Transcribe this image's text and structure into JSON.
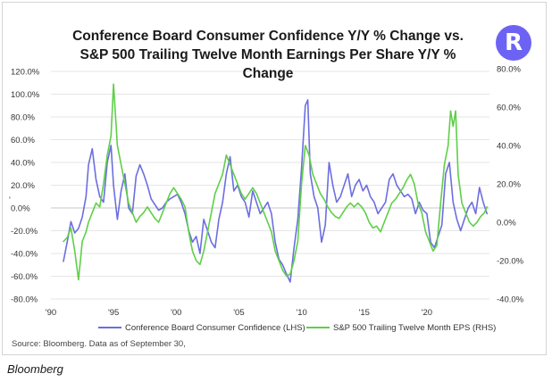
{
  "chart_data": {
    "type": "line",
    "title_line1": "Conference Board Consumer Confidence Y/Y % Change vs.",
    "title_line2": "S&P 500 Trailing Twelve Month Earnings Per Share Y/Y %",
    "title_line3": "Change",
    "source": "Source: Bloomberg. Data as of September 30,",
    "caption": "Bloomberg",
    "logo_letter": "R",
    "x_ticks": [
      "'90",
      "'95",
      "'00",
      "'05",
      "'10",
      "'15",
      "'20"
    ],
    "x_tick_years": [
      1990,
      1995,
      2000,
      2005,
      2010,
      2015,
      2020
    ],
    "xlim": [
      1990,
      2025
    ],
    "left_axis": {
      "ylim": [
        -80,
        120
      ],
      "ticks": [
        120,
        100,
        80,
        60,
        40,
        20,
        0,
        -20,
        -40,
        -60,
        -80
      ],
      "tick_labels": [
        "120.0%",
        "100.0%",
        "80.0%",
        "60.0%",
        "40.0%",
        "20.0%",
        "0.0%",
        "-20.0%",
        "-40.0%",
        "-60.0%",
        "-80.0%"
      ],
      "marker": "'"
    },
    "right_axis": {
      "ylim": [
        -40,
        80
      ],
      "ticks": [
        80,
        60,
        40,
        20,
        0,
        -20,
        -40
      ],
      "tick_labels": [
        "80.0%",
        "60.0%",
        "40.0%",
        "20.0%",
        "0.0%",
        "-20.0%",
        "-40.0%"
      ]
    },
    "series": [
      {
        "name": "Conference Board Consumer Confidence (LHS)",
        "axis": "left",
        "color": "#6c6ee0",
        "points": [
          [
            1991.0,
            -47
          ],
          [
            1991.3,
            -30
          ],
          [
            1991.6,
            -12
          ],
          [
            1991.9,
            -22
          ],
          [
            1992.2,
            -18
          ],
          [
            1992.5,
            -8
          ],
          [
            1992.8,
            10
          ],
          [
            1993.0,
            38
          ],
          [
            1993.3,
            52
          ],
          [
            1993.6,
            25
          ],
          [
            1993.9,
            10
          ],
          [
            1994.2,
            5
          ],
          [
            1994.5,
            40
          ],
          [
            1994.8,
            55
          ],
          [
            1995.0,
            20
          ],
          [
            1995.3,
            -10
          ],
          [
            1995.6,
            15
          ],
          [
            1995.9,
            30
          ],
          [
            1996.2,
            0
          ],
          [
            1996.5,
            -5
          ],
          [
            1996.8,
            28
          ],
          [
            1997.1,
            38
          ],
          [
            1997.4,
            30
          ],
          [
            1997.7,
            20
          ],
          [
            1998.0,
            8
          ],
          [
            1998.3,
            3
          ],
          [
            1998.6,
            -2
          ],
          [
            1998.9,
            0
          ],
          [
            1999.2,
            5
          ],
          [
            1999.5,
            8
          ],
          [
            1999.8,
            10
          ],
          [
            2000.1,
            12
          ],
          [
            2000.4,
            5
          ],
          [
            2000.7,
            -5
          ],
          [
            2001.0,
            -20
          ],
          [
            2001.3,
            -30
          ],
          [
            2001.6,
            -25
          ],
          [
            2001.9,
            -40
          ],
          [
            2002.2,
            -10
          ],
          [
            2002.5,
            -20
          ],
          [
            2002.8,
            -30
          ],
          [
            2003.1,
            -35
          ],
          [
            2003.4,
            -10
          ],
          [
            2003.7,
            5
          ],
          [
            2004.0,
            30
          ],
          [
            2004.3,
            45
          ],
          [
            2004.6,
            15
          ],
          [
            2004.9,
            20
          ],
          [
            2005.2,
            10
          ],
          [
            2005.5,
            5
          ],
          [
            2005.8,
            -8
          ],
          [
            2006.1,
            15
          ],
          [
            2006.4,
            5
          ],
          [
            2006.7,
            -5
          ],
          [
            2007.0,
            0
          ],
          [
            2007.3,
            5
          ],
          [
            2007.6,
            -5
          ],
          [
            2007.9,
            -30
          ],
          [
            2008.2,
            -45
          ],
          [
            2008.5,
            -50
          ],
          [
            2008.8,
            -58
          ],
          [
            2009.1,
            -65
          ],
          [
            2009.4,
            -35
          ],
          [
            2009.7,
            -10
          ],
          [
            2010.0,
            35
          ],
          [
            2010.3,
            90
          ],
          [
            2010.5,
            95
          ],
          [
            2010.7,
            30
          ],
          [
            2011.0,
            10
          ],
          [
            2011.3,
            0
          ],
          [
            2011.6,
            -30
          ],
          [
            2011.9,
            -15
          ],
          [
            2012.2,
            40
          ],
          [
            2012.5,
            20
          ],
          [
            2012.8,
            5
          ],
          [
            2013.1,
            10
          ],
          [
            2013.4,
            20
          ],
          [
            2013.7,
            30
          ],
          [
            2014.0,
            10
          ],
          [
            2014.3,
            20
          ],
          [
            2014.6,
            25
          ],
          [
            2014.9,
            15
          ],
          [
            2015.2,
            20
          ],
          [
            2015.5,
            10
          ],
          [
            2015.8,
            5
          ],
          [
            2016.1,
            -5
          ],
          [
            2016.4,
            0
          ],
          [
            2016.7,
            5
          ],
          [
            2017.0,
            25
          ],
          [
            2017.3,
            30
          ],
          [
            2017.6,
            20
          ],
          [
            2017.9,
            15
          ],
          [
            2018.2,
            10
          ],
          [
            2018.5,
            12
          ],
          [
            2018.8,
            8
          ],
          [
            2019.1,
            -5
          ],
          [
            2019.4,
            5
          ],
          [
            2019.7,
            -2
          ],
          [
            2020.0,
            -5
          ],
          [
            2020.3,
            -30
          ],
          [
            2020.6,
            -35
          ],
          [
            2020.9,
            -25
          ],
          [
            2021.2,
            -15
          ],
          [
            2021.5,
            30
          ],
          [
            2021.8,
            40
          ],
          [
            2022.1,
            5
          ],
          [
            2022.4,
            -10
          ],
          [
            2022.7,
            -20
          ],
          [
            2023.0,
            -10
          ],
          [
            2023.3,
            0
          ],
          [
            2023.6,
            5
          ],
          [
            2023.9,
            -5
          ],
          [
            2024.2,
            18
          ],
          [
            2024.5,
            5
          ],
          [
            2024.8,
            -5
          ]
        ]
      },
      {
        "name": "S&P 500 Trailing Twelve Month EPS (RHS)",
        "axis": "right",
        "color": "#5fcf48",
        "points": [
          [
            1991.0,
            -10
          ],
          [
            1991.3,
            -8
          ],
          [
            1991.6,
            -3
          ],
          [
            1991.9,
            -15
          ],
          [
            1992.2,
            -30
          ],
          [
            1992.5,
            -10
          ],
          [
            1992.8,
            -5
          ],
          [
            1993.0,
            0
          ],
          [
            1993.3,
            5
          ],
          [
            1993.6,
            10
          ],
          [
            1993.9,
            8
          ],
          [
            1994.2,
            20
          ],
          [
            1994.5,
            35
          ],
          [
            1994.8,
            45
          ],
          [
            1995.0,
            72
          ],
          [
            1995.3,
            40
          ],
          [
            1995.6,
            30
          ],
          [
            1995.9,
            20
          ],
          [
            1996.2,
            10
          ],
          [
            1996.5,
            5
          ],
          [
            1996.8,
            0
          ],
          [
            1997.1,
            3
          ],
          [
            1997.4,
            5
          ],
          [
            1997.7,
            8
          ],
          [
            1998.0,
            5
          ],
          [
            1998.3,
            2
          ],
          [
            1998.6,
            0
          ],
          [
            1998.9,
            5
          ],
          [
            1999.2,
            10
          ],
          [
            1999.5,
            15
          ],
          [
            1999.8,
            18
          ],
          [
            2000.1,
            15
          ],
          [
            2000.4,
            12
          ],
          [
            2000.7,
            8
          ],
          [
            2001.0,
            -5
          ],
          [
            2001.3,
            -15
          ],
          [
            2001.6,
            -20
          ],
          [
            2001.9,
            -22
          ],
          [
            2002.2,
            -15
          ],
          [
            2002.5,
            -5
          ],
          [
            2002.8,
            5
          ],
          [
            2003.1,
            15
          ],
          [
            2003.4,
            20
          ],
          [
            2003.7,
            25
          ],
          [
            2004.0,
            35
          ],
          [
            2004.3,
            30
          ],
          [
            2004.6,
            25
          ],
          [
            2004.9,
            20
          ],
          [
            2005.2,
            15
          ],
          [
            2005.5,
            12
          ],
          [
            2005.8,
            15
          ],
          [
            2006.1,
            18
          ],
          [
            2006.4,
            15
          ],
          [
            2006.7,
            10
          ],
          [
            2007.0,
            5
          ],
          [
            2007.3,
            0
          ],
          [
            2007.6,
            -5
          ],
          [
            2007.9,
            -15
          ],
          [
            2008.2,
            -20
          ],
          [
            2008.5,
            -25
          ],
          [
            2008.8,
            -28
          ],
          [
            2009.1,
            -27
          ],
          [
            2009.4,
            -20
          ],
          [
            2009.7,
            -10
          ],
          [
            2010.0,
            20
          ],
          [
            2010.3,
            40
          ],
          [
            2010.6,
            35
          ],
          [
            2010.9,
            25
          ],
          [
            2011.2,
            20
          ],
          [
            2011.5,
            15
          ],
          [
            2011.8,
            12
          ],
          [
            2012.1,
            8
          ],
          [
            2012.4,
            5
          ],
          [
            2012.7,
            3
          ],
          [
            2013.0,
            2
          ],
          [
            2013.3,
            5
          ],
          [
            2013.6,
            8
          ],
          [
            2013.9,
            10
          ],
          [
            2014.2,
            8
          ],
          [
            2014.5,
            10
          ],
          [
            2014.8,
            8
          ],
          [
            2015.1,
            5
          ],
          [
            2015.4,
            0
          ],
          [
            2015.7,
            -3
          ],
          [
            2016.0,
            -2
          ],
          [
            2016.3,
            -5
          ],
          [
            2016.6,
            0
          ],
          [
            2016.9,
            5
          ],
          [
            2017.2,
            10
          ],
          [
            2017.5,
            12
          ],
          [
            2017.8,
            15
          ],
          [
            2018.1,
            18
          ],
          [
            2018.4,
            22
          ],
          [
            2018.7,
            25
          ],
          [
            2019.0,
            20
          ],
          [
            2019.3,
            10
          ],
          [
            2019.6,
            5
          ],
          [
            2019.9,
            -5
          ],
          [
            2020.2,
            -10
          ],
          [
            2020.5,
            -15
          ],
          [
            2020.8,
            -12
          ],
          [
            2021.1,
            10
          ],
          [
            2021.4,
            30
          ],
          [
            2021.7,
            40
          ],
          [
            2021.9,
            58
          ],
          [
            2022.1,
            50
          ],
          [
            2022.3,
            58
          ],
          [
            2022.5,
            25
          ],
          [
            2022.8,
            10
          ],
          [
            2023.1,
            5
          ],
          [
            2023.4,
            0
          ],
          [
            2023.7,
            -2
          ],
          [
            2024.0,
            0
          ],
          [
            2024.3,
            3
          ],
          [
            2024.6,
            5
          ],
          [
            2024.8,
            8
          ]
        ]
      }
    ]
  }
}
